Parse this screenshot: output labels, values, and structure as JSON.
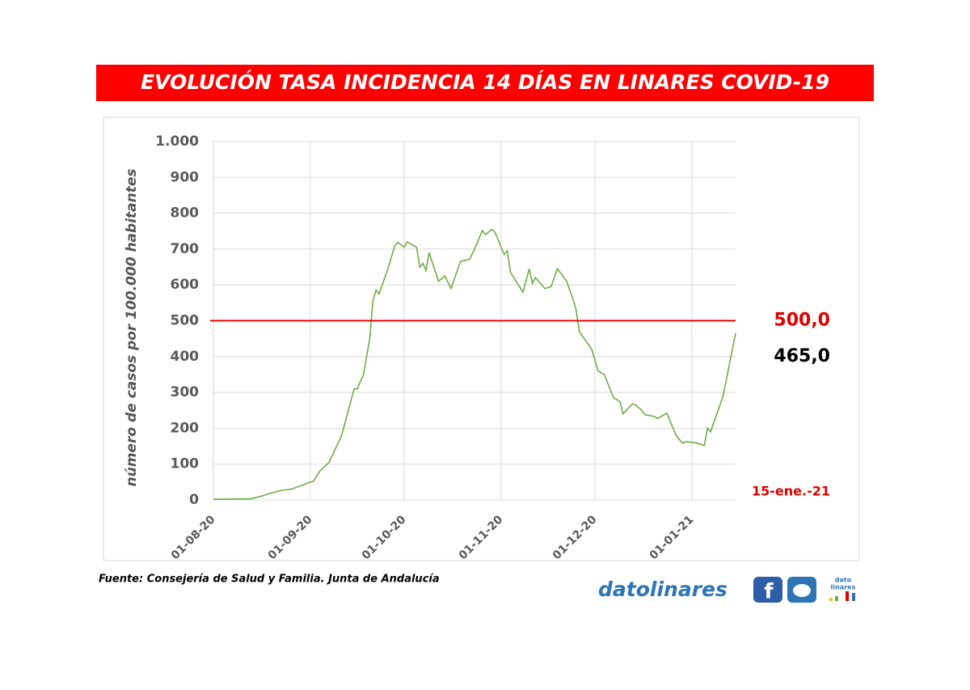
{
  "chart_data": {
    "type": "line",
    "title": "EVOLUCIÓN TASA INCIDENCIA 14 DÍAS EN LINARES COVID-19",
    "y_label": "número de casos por 100.000 habitantes",
    "color": "#70ad47",
    "x": [
      "2020-08-01",
      "2020-08-06",
      "2020-08-13",
      "2020-08-17",
      "2020-08-19",
      "2020-08-23",
      "2020-08-26",
      "2020-08-30",
      "2020-09-01",
      "2020-09-02",
      "2020-09-04",
      "2020-09-07",
      "2020-09-11",
      "2020-09-15",
      "2020-09-16",
      "2020-09-18",
      "2020-09-20",
      "2020-09-21",
      "2020-09-22",
      "2020-09-23",
      "2020-09-26",
      "2020-09-28",
      "2020-09-29",
      "2020-10-01",
      "2020-10-02",
      "2020-10-05",
      "2020-10-06",
      "2020-10-07",
      "2020-10-08",
      "2020-10-09",
      "2020-10-12",
      "2020-10-14",
      "2020-10-16",
      "2020-10-19",
      "2020-10-22",
      "2020-10-24",
      "2020-10-26",
      "2020-10-27",
      "2020-10-29",
      "2020-10-30",
      "2020-11-02",
      "2020-11-03",
      "2020-11-04",
      "2020-11-08",
      "2020-11-10",
      "2020-11-11",
      "2020-11-12",
      "2020-11-15",
      "2020-11-17",
      "2020-11-19",
      "2020-11-22",
      "2020-11-24",
      "2020-11-25",
      "2020-11-26",
      "2020-11-30",
      "2020-12-02",
      "2020-12-04",
      "2020-12-07",
      "2020-12-09",
      "2020-12-10",
      "2020-12-13",
      "2020-12-14",
      "2020-12-16",
      "2020-12-17",
      "2020-12-20",
      "2020-12-21",
      "2020-12-24",
      "2020-12-27",
      "2020-12-29",
      "2020-12-30",
      "2021-01-02",
      "2021-01-05",
      "2021-01-06",
      "2021-01-07",
      "2021-01-11",
      "2021-01-15"
    ],
    "values": [
      2,
      2,
      3,
      12,
      18,
      27,
      30,
      43,
      50,
      52,
      80,
      105,
      180,
      310,
      310,
      350,
      450,
      555,
      585,
      575,
      650,
      710,
      718,
      705,
      720,
      705,
      650,
      660,
      640,
      690,
      610,
      625,
      590,
      665,
      672,
      710,
      752,
      740,
      755,
      748,
      685,
      695,
      635,
      580,
      645,
      605,
      620,
      590,
      595,
      645,
      610,
      560,
      530,
      470,
      420,
      360,
      350,
      285,
      275,
      240,
      268,
      265,
      250,
      238,
      233,
      227,
      242,
      180,
      158,
      162,
      160,
      152,
      200,
      190,
      290,
      465
    ],
    "value_labels": [
      null,
      null,
      null,
      null,
      null,
      null,
      null,
      null,
      null,
      null,
      null,
      null,
      null,
      null,
      null,
      null,
      null,
      null,
      null,
      null,
      null,
      null,
      null,
      null,
      null,
      null,
      null,
      null,
      null,
      null,
      null,
      null,
      null,
      null,
      null,
      null,
      null,
      null,
      null,
      null,
      null,
      null,
      null,
      null,
      null,
      null,
      null,
      null,
      null,
      null,
      null,
      null,
      null,
      null,
      null,
      null,
      null,
      null,
      null,
      null,
      null,
      null,
      null,
      null,
      null,
      null,
      null,
      null,
      null,
      null,
      null,
      null,
      null,
      null,
      null,
      "465,0"
    ],
    "xlim": [
      "2020-08-01",
      "2021-01-15"
    ],
    "xticks": [
      {
        "value": "2020-08-01",
        "label": "01-08-20"
      },
      {
        "value": "2020-09-01",
        "label": "01-09-20"
      },
      {
        "value": "2020-10-01",
        "label": "01-10-20"
      },
      {
        "value": "2020-11-01",
        "label": "01-11-20"
      },
      {
        "value": "2020-12-01",
        "label": "01-12-20"
      },
      {
        "value": "2021-01-01",
        "label": "01-01-21"
      }
    ],
    "ylim": [
      0,
      1000
    ],
    "yticks": [
      0,
      100,
      200,
      300,
      400,
      500,
      600,
      700,
      800,
      900,
      {
        "value": 1000,
        "label": "1.000"
      }
    ],
    "grid": true,
    "threshold": {
      "value": 500,
      "label": "500,0",
      "color": "#e00000"
    },
    "end_date_label": "15-ene.-21"
  },
  "source": "Fuente: Consejería de Salud y Familia. Junta de Andalucía",
  "brand": "datolinares",
  "logo_text": [
    "dato",
    "linares"
  ]
}
